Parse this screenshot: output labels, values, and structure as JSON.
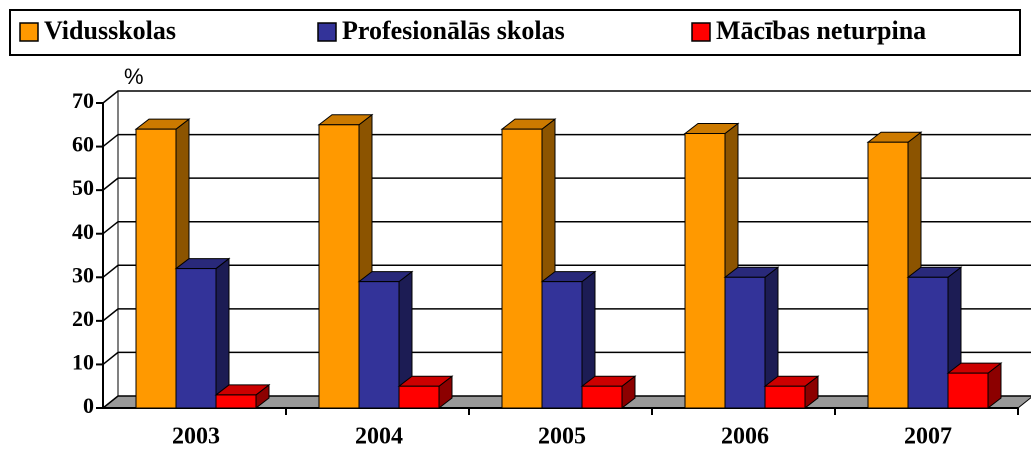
{
  "chart_data": {
    "type": "bar3d",
    "unit": "%",
    "categories": [
      "2003",
      "2004",
      "2005",
      "2006",
      "2007"
    ],
    "series": [
      {
        "name": "Vidusskolas",
        "color": "#ff9900",
        "values": [
          64,
          65,
          64,
          63,
          61
        ]
      },
      {
        "name": "Profesionālās skolas",
        "color": "#333399",
        "values": [
          32,
          29,
          29,
          30,
          30
        ]
      },
      {
        "name": "Mācības neturpina",
        "color": "#ff0000",
        "values": [
          3,
          5,
          5,
          5,
          8
        ]
      }
    ],
    "ylim": [
      0,
      70
    ],
    "yticks": [
      0,
      10,
      20,
      30,
      40,
      50,
      60,
      70
    ],
    "grid": true,
    "legend": "top"
  }
}
